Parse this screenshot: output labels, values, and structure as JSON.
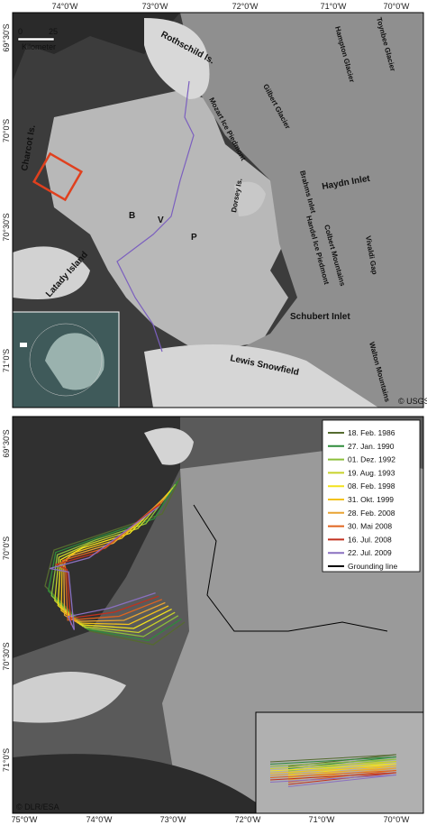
{
  "panels": [
    {
      "lon_labels": [
        "74°0'W",
        "73°0'W",
        "72°0'W",
        "71°0'W",
        "70°0'W"
      ],
      "lat_labels": [
        "69°30'S",
        "70°0'S",
        "70°30'S",
        "71°0'S"
      ],
      "scale": {
        "start": "0",
        "end": "25",
        "unit": "Kilometer"
      },
      "places": [
        "Rothschild Is.",
        "Charcot Is.",
        "Latady Island",
        "Lewis Snowfield",
        "Mozart Ice Piedmont",
        "Gilbert Glacier",
        "Hampton Glacier",
        "Toynbee Glacier",
        "Dorsey Is.",
        "Haydn Inlet",
        "Handel Ice Piedmont",
        "Colbert Mountains",
        "Vivaldi Gap",
        "Schubert Inlet",
        "Walton Mountains",
        "Brahms Inlet",
        "B",
        "V",
        "P"
      ],
      "credit": "© USGS"
    },
    {
      "lon_labels": [
        "75°0'W",
        "74°0'W",
        "73°0'W",
        "72°0'W",
        "71°0'W",
        "70°0'W"
      ],
      "lat_labels": [
        "69°30'S",
        "70°0'S",
        "70°30'S",
        "71°0'S"
      ],
      "legend": [
        {
          "name": "18. Feb. 1986",
          "color": "#556b2f"
        },
        {
          "name": "27. Jan. 1990",
          "color": "#2e8b3a"
        },
        {
          "name": "01. Dez. 1992",
          "color": "#8cbf3a"
        },
        {
          "name": "19. Aug. 1993",
          "color": "#c8d22a"
        },
        {
          "name": "08. Feb. 1998",
          "color": "#f2e21c"
        },
        {
          "name": "31. Okt. 1999",
          "color": "#f3c21a"
        },
        {
          "name": "28. Feb. 2008",
          "color": "#e8a432"
        },
        {
          "name": "30. Mai 2008",
          "color": "#e0641e"
        },
        {
          "name": "16. Jul. 2008",
          "color": "#c2301e"
        },
        {
          "name": "22. Jul. 2009",
          "color": "#8a70c0"
        },
        {
          "name": "Grounding line",
          "color": "#000000"
        }
      ],
      "credit": "© DLR/ESA"
    }
  ]
}
